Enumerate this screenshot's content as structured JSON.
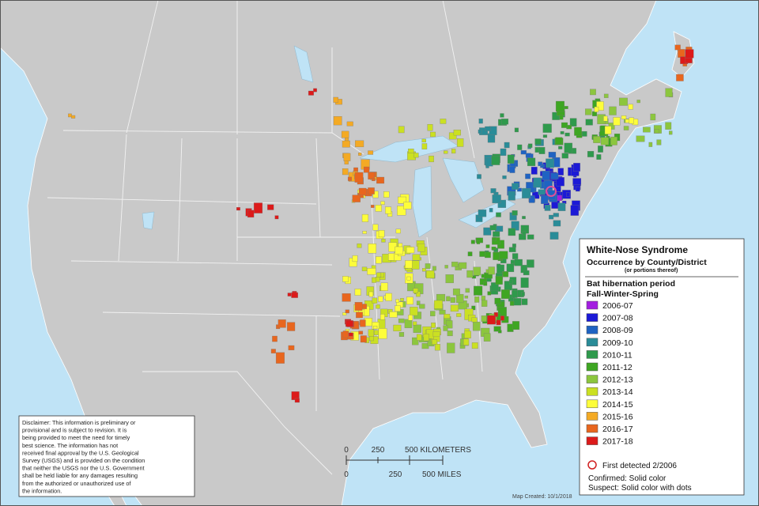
{
  "legend": {
    "title": "White-Nose Syndrome",
    "subtitle": "Occurrence by County/District",
    "note": "(or portions thereof)",
    "period_title": "Bat hibernation period",
    "period_subtitle": "Fall-Winter-Spring",
    "items": [
      {
        "label": "2006-07",
        "color": "#a31ee0"
      },
      {
        "label": "2007-08",
        "color": "#1c1ad6"
      },
      {
        "label": "2008-09",
        "color": "#1f63c2"
      },
      {
        "label": "2009-10",
        "color": "#2a8c98"
      },
      {
        "label": "2010-11",
        "color": "#2f9a4c"
      },
      {
        "label": "2011-12",
        "color": "#3ea622"
      },
      {
        "label": "2012-13",
        "color": "#8cc63e"
      },
      {
        "label": "2013-14",
        "color": "#cbe022"
      },
      {
        "label": "2014-15",
        "color": "#fdfd3a"
      },
      {
        "label": "2015-16",
        "color": "#f4aa24"
      },
      {
        "label": "2016-17",
        "color": "#e8661e"
      },
      {
        "label": "2017-18",
        "color": "#dc1a1a"
      }
    ],
    "first_detected": "First detected 2/2006",
    "confirmed": "Confirmed: Solid color",
    "suspect": "Suspect: Solid color with dots"
  },
  "disclaimer": [
    "Disclaimer: This information is preliminary or",
    "provisional and is subject to revision. It is",
    "being provided to meet the need for timely",
    "best science. The information has not",
    "received final approval by the U.S. Geological",
    "Survey (USGS) and is provided on the condition",
    "that neither the USGS nor the U.S. Government",
    "shall be held liable for any damages resulting",
    "from the authorized or unauthorized use of",
    "the information."
  ],
  "scale": {
    "km": [
      "0",
      "250",
      "500 KILOMETERS"
    ],
    "mi": [
      "0",
      "250",
      "500 MILES"
    ]
  },
  "map_created": "Map Created: 10/1/2018"
}
